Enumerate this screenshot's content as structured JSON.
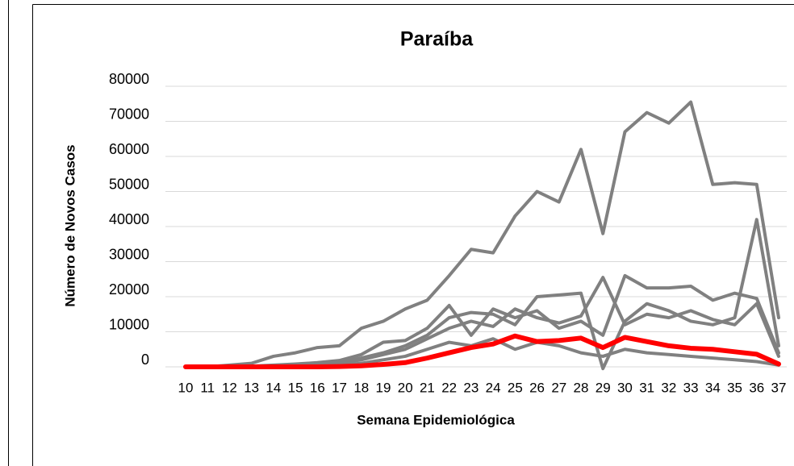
{
  "chart_data": {
    "type": "line",
    "title": "Paraíba",
    "x_label": "Semana Epidemiológica",
    "y_label": "Número de Novos Casos",
    "categories": [
      "10",
      "11",
      "12",
      "13",
      "14",
      "15",
      "16",
      "17",
      "18",
      "19",
      "20",
      "21",
      "22",
      "23",
      "24",
      "25",
      "26",
      "27",
      "28",
      "29",
      "30",
      "31",
      "32",
      "33",
      "34",
      "35",
      "36",
      "37"
    ],
    "ylim": [
      0,
      80000
    ],
    "yticks": [
      0,
      10000,
      20000,
      30000,
      40000,
      50000,
      60000,
      70000,
      80000
    ],
    "grid": true,
    "series": [
      {
        "color": "#808080",
        "values": [
          0,
          0,
          500,
          1000,
          3000,
          4000,
          5500,
          6000,
          11000,
          13000,
          16500,
          19000,
          26000,
          33500,
          32500,
          43000,
          50000,
          47000,
          62000,
          38000,
          67000,
          72500,
          69500,
          75500,
          52000,
          52500,
          52000,
          14000
        ]
      },
      {
        "color": "#808080",
        "values": [
          0,
          0,
          0,
          200,
          500,
          800,
          1200,
          1800,
          3500,
          7000,
          7500,
          11000,
          17500,
          9000,
          16500,
          14000,
          16000,
          11000,
          13000,
          9000,
          26000,
          22500,
          22500,
          23000,
          19000,
          21000,
          19500,
          4000
        ]
      },
      {
        "color": "#808080",
        "values": [
          0,
          0,
          0,
          0,
          200,
          500,
          800,
          1200,
          2500,
          4000,
          6000,
          9000,
          14000,
          15500,
          15000,
          12000,
          20000,
          20500,
          21000,
          -500,
          13000,
          18000,
          16000,
          13000,
          12000,
          14000,
          42000,
          6000
        ]
      },
      {
        "color": "#808080",
        "values": [
          0,
          0,
          0,
          0,
          100,
          300,
          600,
          1000,
          2000,
          3500,
          5000,
          8000,
          11000,
          13000,
          11500,
          16500,
          14000,
          12500,
          14500,
          25500,
          12000,
          15000,
          14000,
          16000,
          13500,
          12000,
          18000,
          3000
        ]
      },
      {
        "color": "#808080",
        "values": [
          0,
          0,
          0,
          0,
          0,
          100,
          300,
          500,
          1000,
          2000,
          3000,
          5000,
          7000,
          6000,
          8000,
          5000,
          7000,
          6000,
          4000,
          3000,
          5000,
          4000,
          3500,
          3000,
          2500,
          2000,
          1500,
          500
        ]
      },
      {
        "color": "#ff0000",
        "values": [
          0,
          0,
          0,
          0,
          0,
          0,
          0,
          100,
          300,
          700,
          1200,
          2500,
          4000,
          5500,
          6500,
          8800,
          7200,
          7500,
          8200,
          5500,
          8400,
          7200,
          6000,
          5300,
          5000,
          4300,
          3600,
          800
        ]
      }
    ]
  }
}
